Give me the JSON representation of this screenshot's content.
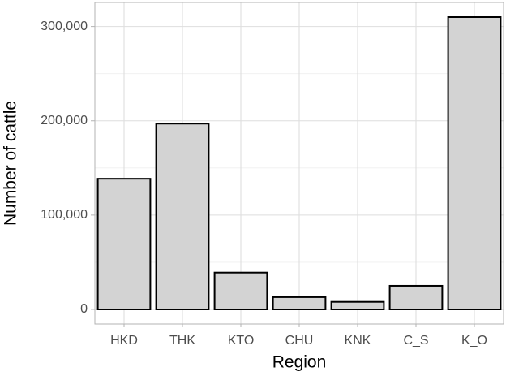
{
  "chart_data": {
    "type": "bar",
    "x_label": "Region",
    "y_label": "Number of cattle",
    "categories": [
      "HKD",
      "THK",
      "KTO",
      "CHU",
      "KNK",
      "C_S",
      "K_O"
    ],
    "values": [
      138500,
      197000,
      39000,
      13000,
      8000,
      25000,
      310000
    ],
    "color": "#d3d3d3",
    "edge_color": "#000000",
    "ylim": [
      -15500,
      325500
    ],
    "yticks": [
      0,
      {
        "value": 100000,
        "label": "100,000"
      },
      {
        "value": 200000,
        "label": "200,000"
      },
      {
        "value": 300000,
        "label": "300,000"
      }
    ],
    "y_minor_ticks": [
      50000,
      150000,
      250000
    ],
    "grid": true
  }
}
